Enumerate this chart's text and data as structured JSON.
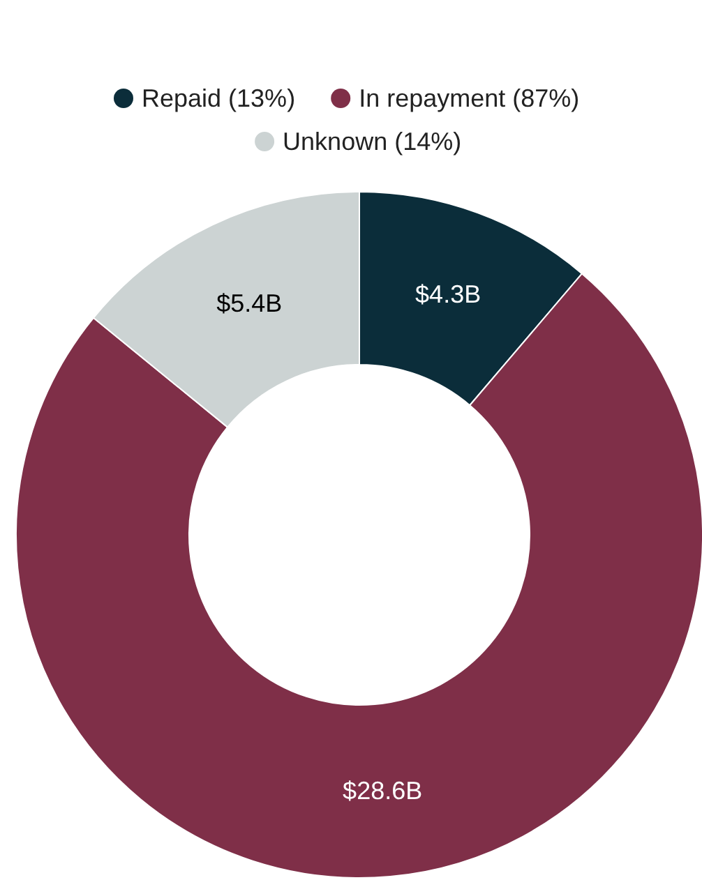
{
  "chart_data": {
    "type": "donut",
    "categories": [
      "Repaid (13%)",
      "In repayment (87%)",
      "Unknown (14%)"
    ],
    "values": [
      4.3,
      28.6,
      5.4
    ],
    "colors": [
      "#0b2d3a",
      "#7f2f48",
      "#ccd3d3"
    ],
    "value_labels": [
      "$4.3B",
      "$28.6B",
      "$5.4B"
    ],
    "legend": "top"
  }
}
